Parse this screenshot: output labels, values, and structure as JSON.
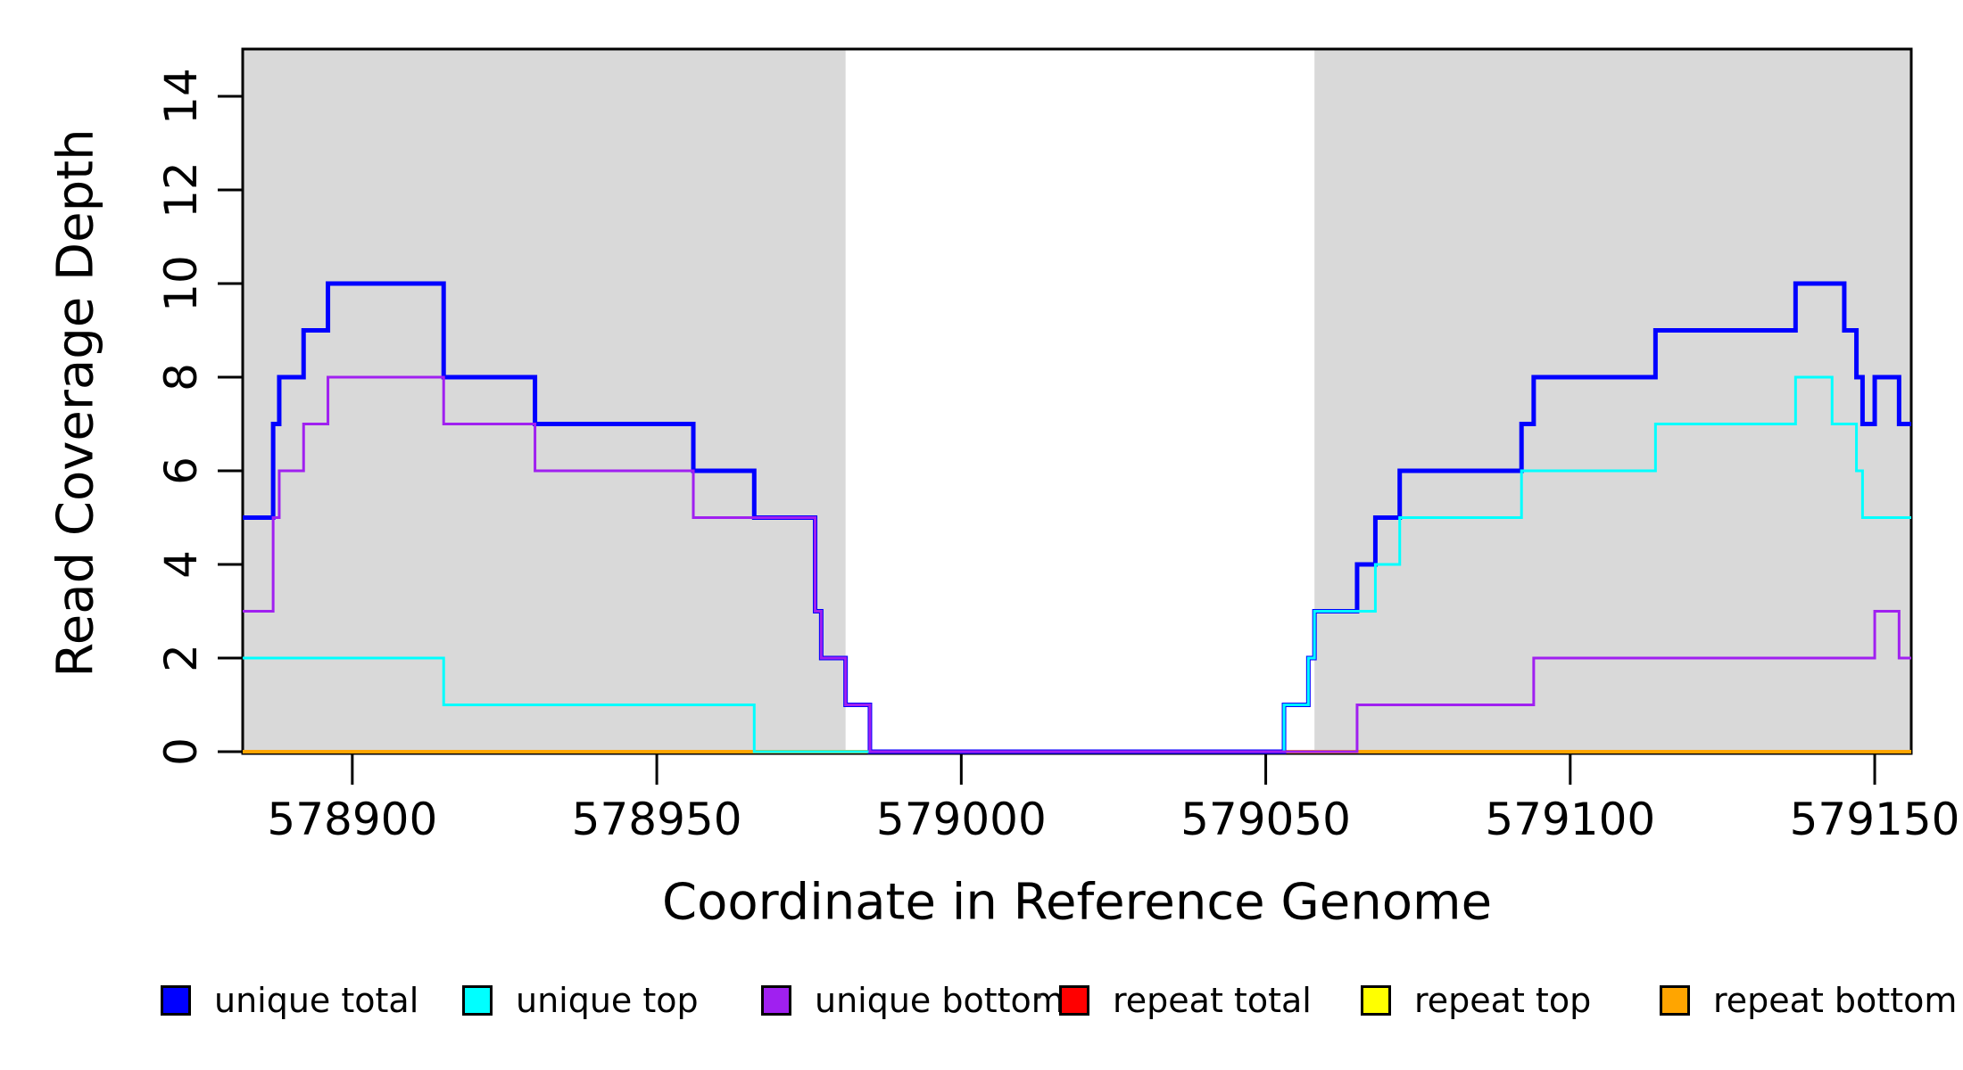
{
  "axes": {
    "x": {
      "title": "Coordinate in Reference Genome",
      "tick_labels": [
        "578900",
        "578950",
        "579000",
        "579050",
        "579100",
        "579150"
      ],
      "tick_values": [
        578900,
        578950,
        579000,
        579050,
        579100,
        579150
      ]
    },
    "y": {
      "title": "Read Coverage Depth",
      "tick_labels": [
        "0",
        "2",
        "4",
        "6",
        "8",
        "10",
        "12",
        "14"
      ],
      "tick_values": [
        0,
        2,
        4,
        6,
        8,
        10,
        12,
        14
      ]
    }
  },
  "highlight_bands": {
    "color": "#D9D9D9",
    "x_ranges": [
      [
        578882,
        578981
      ],
      [
        579058,
        579156
      ]
    ]
  },
  "legend": {
    "items": [
      {
        "label": "unique total",
        "color": "#0000FF"
      },
      {
        "label": "unique top",
        "color": "#00FFFF"
      },
      {
        "label": "unique bottom",
        "color": "#A020F0"
      },
      {
        "label": "repeat total",
        "color": "#FF0000"
      },
      {
        "label": "repeat top",
        "color": "#FFFF00"
      },
      {
        "label": "repeat bottom",
        "color": "#FFA500"
      }
    ]
  },
  "chart_data": {
    "type": "line",
    "style": "step-after",
    "title": "",
    "xlabel": "Coordinate in Reference Genome",
    "ylabel": "Read Coverage Depth",
    "xlim": [
      578882,
      579156
    ],
    "ylim": [
      0,
      15
    ],
    "grid": false,
    "legend_position": "bottom",
    "draw_order": [
      3,
      4,
      5,
      0,
      1,
      2
    ],
    "series": [
      {
        "name": "unique total",
        "color": "#0000FF",
        "lwd": 5,
        "points": [
          [
            578882,
            5
          ],
          [
            578887,
            7
          ],
          [
            578888,
            8
          ],
          [
            578892,
            9
          ],
          [
            578896,
            10
          ],
          [
            578915,
            8
          ],
          [
            578930,
            7
          ],
          [
            578956,
            6
          ],
          [
            578966,
            5
          ],
          [
            578976,
            3
          ],
          [
            578977,
            2
          ],
          [
            578981,
            1
          ],
          [
            578985,
            0
          ],
          [
            579053,
            1
          ],
          [
            579057,
            2
          ],
          [
            579058,
            3
          ],
          [
            579065,
            4
          ],
          [
            579068,
            5
          ],
          [
            579072,
            6
          ],
          [
            579092,
            7
          ],
          [
            579094,
            8
          ],
          [
            579114,
            9
          ],
          [
            579137,
            10
          ],
          [
            579145,
            9
          ],
          [
            579147,
            8
          ],
          [
            579148,
            7
          ],
          [
            579150,
            8
          ],
          [
            579154,
            7
          ],
          [
            579156,
            7
          ]
        ]
      },
      {
        "name": "unique top",
        "color": "#00FFFF",
        "lwd": 3,
        "points": [
          [
            578882,
            2
          ],
          [
            578915,
            1
          ],
          [
            578966,
            0
          ],
          [
            579053,
            1
          ],
          [
            579057,
            2
          ],
          [
            579058,
            3
          ],
          [
            579068,
            4
          ],
          [
            579072,
            5
          ],
          [
            579092,
            6
          ],
          [
            579114,
            7
          ],
          [
            579137,
            8
          ],
          [
            579143,
            7
          ],
          [
            579147,
            6
          ],
          [
            579148,
            5
          ],
          [
            579156,
            5
          ]
        ]
      },
      {
        "name": "unique bottom",
        "color": "#A020F0",
        "lwd": 3,
        "points": [
          [
            578882,
            3
          ],
          [
            578887,
            5
          ],
          [
            578888,
            6
          ],
          [
            578892,
            7
          ],
          [
            578896,
            8
          ],
          [
            578915,
            7
          ],
          [
            578930,
            6
          ],
          [
            578956,
            5
          ],
          [
            578976,
            3
          ],
          [
            578977,
            2
          ],
          [
            578981,
            1
          ],
          [
            578985,
            0
          ],
          [
            579065,
            1
          ],
          [
            579094,
            2
          ],
          [
            579150,
            3
          ],
          [
            579154,
            2
          ],
          [
            579156,
            2
          ]
        ]
      },
      {
        "name": "repeat total",
        "color": "#FF0000",
        "lwd": 3,
        "points": [
          [
            578882,
            0
          ],
          [
            579156,
            0
          ]
        ]
      },
      {
        "name": "repeat top",
        "color": "#FFFF00",
        "lwd": 3,
        "points": [
          [
            578882,
            0
          ],
          [
            579156,
            0
          ]
        ]
      },
      {
        "name": "repeat bottom",
        "color": "#FFA500",
        "lwd": 4,
        "points": [
          [
            578882,
            0
          ],
          [
            579156,
            0
          ]
        ]
      }
    ]
  }
}
